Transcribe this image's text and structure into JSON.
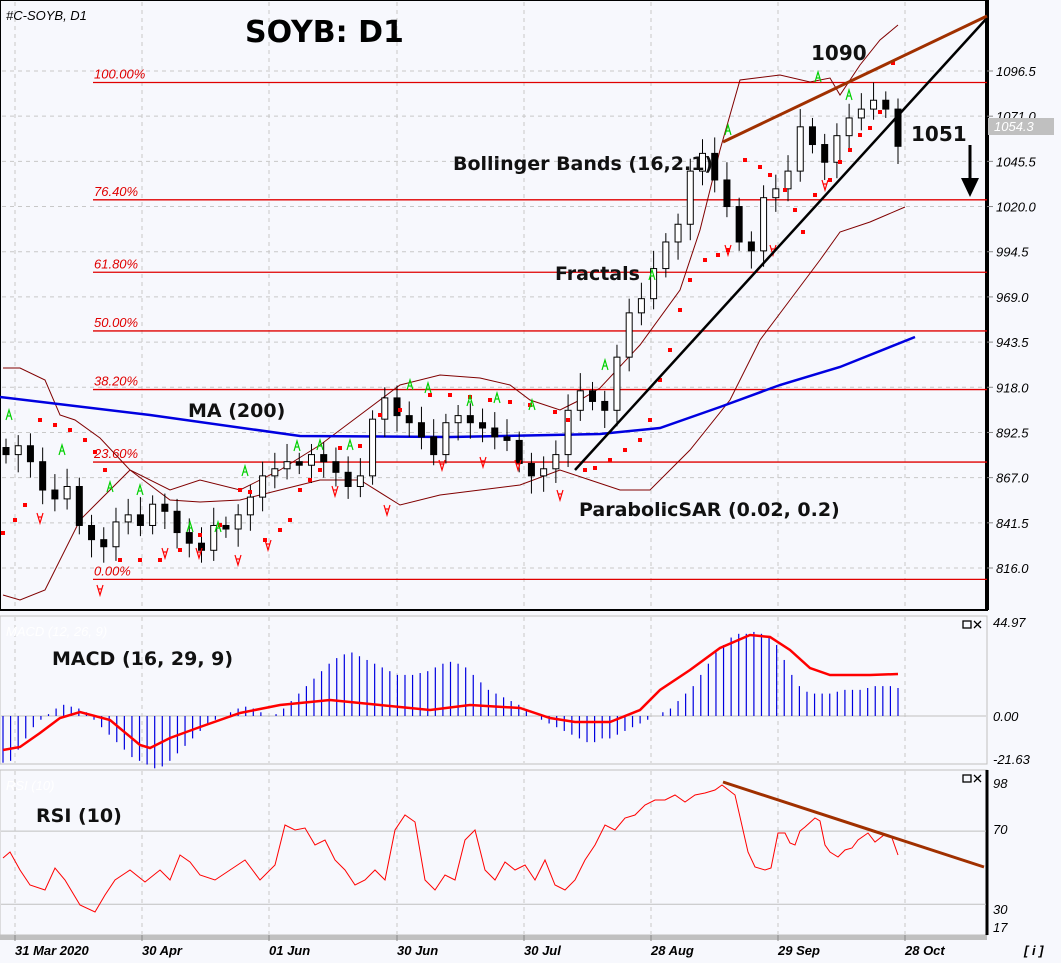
{
  "header": {
    "symbol_label": "#C-SOYB, D1",
    "title": "SOYB: D1",
    "info_button": "[ i ]"
  },
  "annotations": {
    "ma": "MA (200)",
    "bollinger": "Bollinger Bands (16,2.1)",
    "fractals": "Fractals",
    "psar": "ParabolicSAR (0.02, 0.2)",
    "high_label": "1090",
    "last_label": "1051",
    "macd": "MACD (16, 29, 9)",
    "macd_ghost": "MACD (12, 26, 9)",
    "rsi": "RSI (10)",
    "rsi_ghost": "RSI (10)"
  },
  "price_axis": {
    "ticks": [
      "1096.5",
      "1071.0",
      "1045.5",
      "1020.0",
      "994.5",
      "969.0",
      "943.5",
      "918.0",
      "892.5",
      "867.0",
      "841.5",
      "816.0"
    ],
    "current_price": "1054.3"
  },
  "fibonacci": [
    {
      "label": "100.00%",
      "price": 1090
    },
    {
      "label": "76.40%",
      "price": 1023.8
    },
    {
      "label": "61.80%",
      "price": 982.9
    },
    {
      "label": "50.00%",
      "price": 949.8
    },
    {
      "label": "38.20%",
      "price": 916.7
    },
    {
      "label": "23.60%",
      "price": 875.8
    },
    {
      "label": "0.00%",
      "price": 809.6
    }
  ],
  "macd_axis": {
    "ticks": [
      "44.97",
      "0.00",
      "-21.63"
    ]
  },
  "rsi_axis": {
    "ticks": [
      "98",
      "70",
      "30",
      "17"
    ]
  },
  "date_axis": {
    "labels": [
      "31 Mar 2020",
      "30 Apr",
      "01 Jun",
      "30 Jun",
      "30 Jul",
      "28 Aug",
      "29 Sep",
      "28 Oct"
    ]
  },
  "colors": {
    "background": "#f7f8fd",
    "fib": "#e00000",
    "ma": "#0000e0",
    "bollinger": "#800000",
    "psar": "#ff0000",
    "fractal_up": "#00d000",
    "fractal_down": "#ff0000",
    "trendline_support": "#000000",
    "trendline_resistance": "#a03000",
    "macd_hist": "#0000e0",
    "macd_signal": "#ff0000",
    "rsi": "#ff0000"
  },
  "chart_data": [
    {
      "type": "candlestick",
      "title": "SOYB: D1",
      "symbol": "#C-SOYB, D1",
      "ylim": [
        795,
        1112
      ],
      "x_labels": [
        "31 Mar 2020",
        "30 Apr",
        "01 Jun",
        "30 Jun",
        "30 Jul",
        "28 Aug",
        "29 Sep",
        "28 Oct"
      ],
      "close_series_approx": [
        880,
        885,
        876,
        860,
        855,
        862,
        840,
        832,
        828,
        842,
        846,
        840,
        852,
        848,
        836,
        830,
        826,
        840,
        838,
        846,
        856,
        868,
        872,
        876,
        874,
        880,
        876,
        870,
        862,
        868,
        900,
        912,
        902,
        898,
        890,
        880,
        898,
        902,
        898,
        895,
        890,
        888,
        875,
        868,
        872,
        880,
        905,
        916,
        910,
        905,
        935,
        960,
        968,
        985,
        1000,
        1010,
        1040,
        1050,
        1035,
        1020,
        1000,
        995,
        1025,
        1030,
        1040,
        1065,
        1055,
        1045,
        1060,
        1070,
        1075,
        1080,
        1075,
        1054
      ],
      "last_close": 1054.3,
      "high_annotation": 1090,
      "target_annotation": 1051,
      "indicators": [
        "MA (200)",
        "Bollinger Bands (16,2.1)",
        "Fractals",
        "ParabolicSAR (0.02, 0.2)"
      ]
    },
    {
      "type": "bar",
      "title": "MACD (16, 29, 9)",
      "ylim": [
        -21.63,
        44.97
      ],
      "ticks": [
        44.97,
        0.0,
        -21.63
      ]
    },
    {
      "type": "line",
      "title": "RSI (10)",
      "ylim": [
        17,
        98
      ],
      "ticks": [
        98,
        70,
        30,
        17
      ],
      "trendline": {
        "from": 95,
        "to": 52
      }
    }
  ]
}
